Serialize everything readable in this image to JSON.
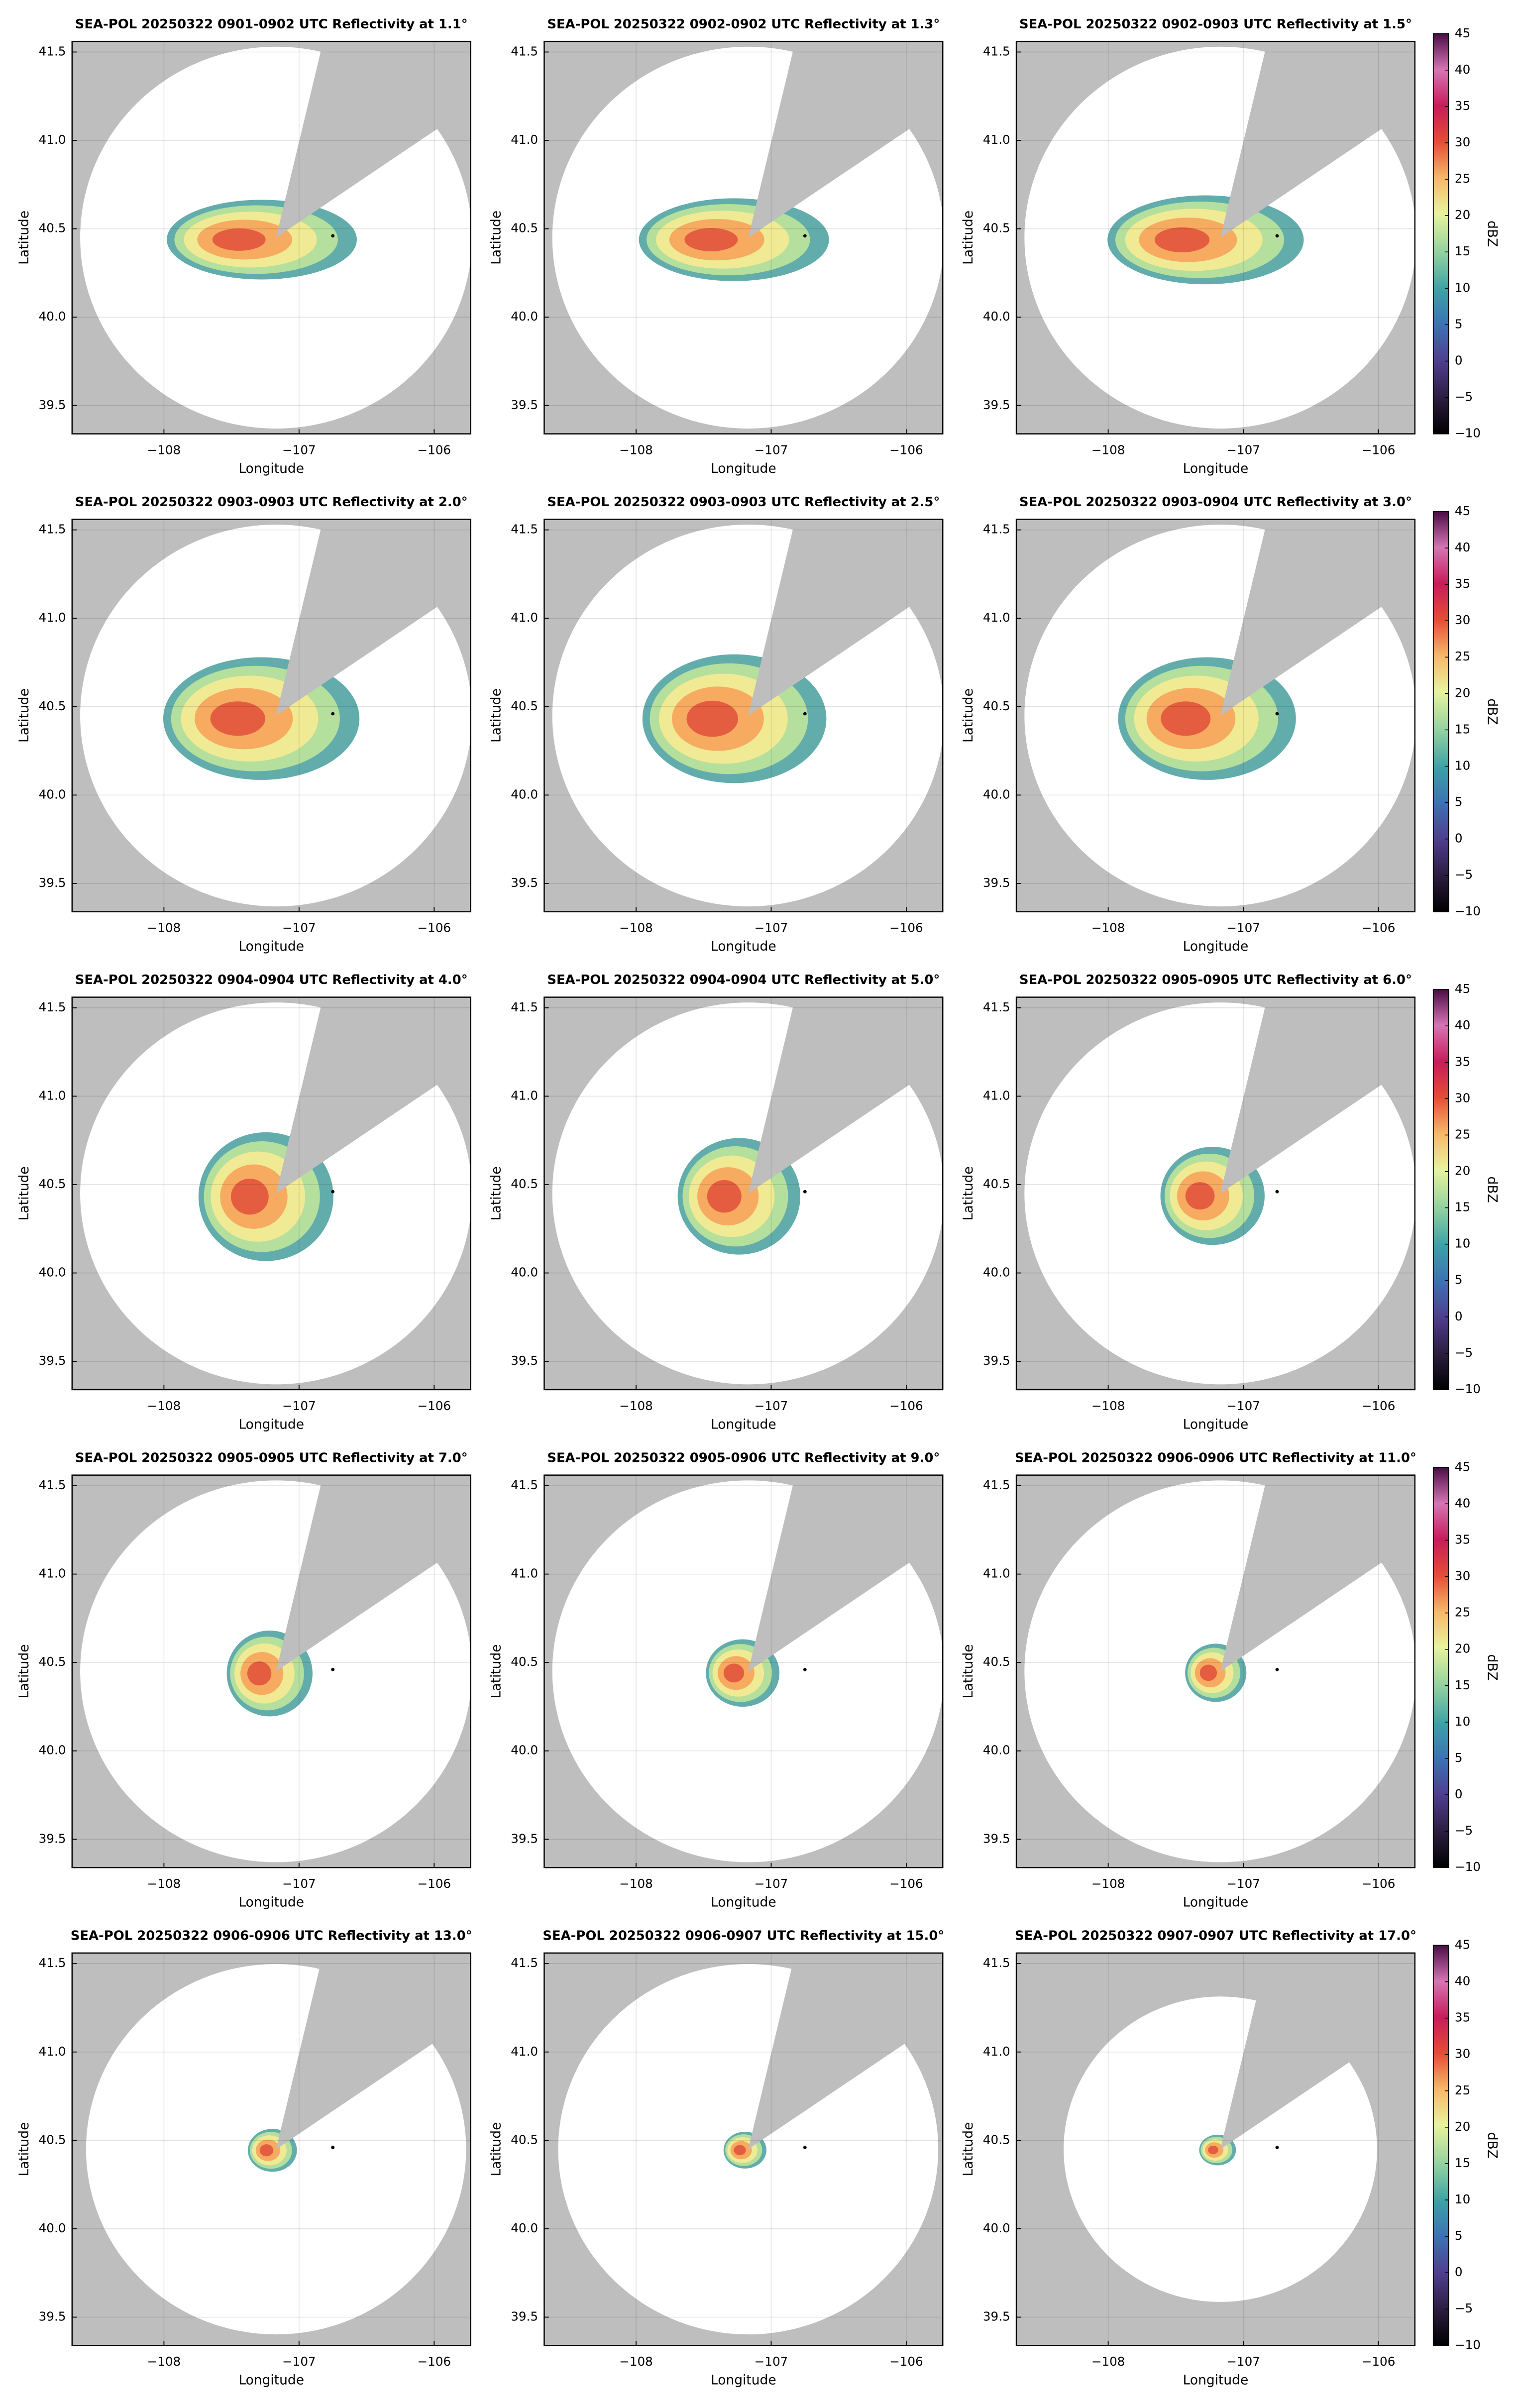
{
  "chart_data": [
    {
      "type": "radar",
      "title": "SEA-POL 20250322 0901-0902 UTC Reflectivity at 1.1°",
      "xlabel": "Longitude",
      "ylabel": "Latitude",
      "xlim": [
        -108.68,
        -105.73
      ],
      "ylim": [
        39.34,
        41.56
      ],
      "xticks": [
        {
          "value": -108,
          "label": "−108"
        },
        {
          "value": -107,
          "label": "−107"
        },
        {
          "value": -106,
          "label": "−106"
        }
      ],
      "yticks": [
        39.5,
        {
          "value": 40.0,
          "label": "40.0"
        },
        40.5,
        {
          "value": 41.0,
          "label": "41.0"
        },
        41.5
      ],
      "grid": true,
      "points": {
        "x": [
          -106.75
        ],
        "y": [
          40.46
        ]
      }
    },
    {
      "type": "radar",
      "title": "SEA-POL 20250322 0902-0902 UTC Reflectivity at 1.3°",
      "xlabel": "Longitude",
      "ylabel": "Latitude",
      "xlim": [
        -108.68,
        -105.73
      ],
      "ylim": [
        39.34,
        41.56
      ],
      "xticks": [
        {
          "value": -108,
          "label": "−108"
        },
        {
          "value": -107,
          "label": "−107"
        },
        {
          "value": -106,
          "label": "−106"
        }
      ],
      "yticks": [
        39.5,
        {
          "value": 40.0,
          "label": "40.0"
        },
        40.5,
        {
          "value": 41.0,
          "label": "41.0"
        },
        41.5
      ],
      "grid": true,
      "points": {
        "x": [
          -106.75
        ],
        "y": [
          40.46
        ]
      }
    },
    {
      "type": "radar",
      "title": "SEA-POL 20250322 0902-0903 UTC Reflectivity at 1.5°",
      "xlabel": "Longitude",
      "ylabel": "Latitude",
      "xlim": [
        -108.68,
        -105.73
      ],
      "ylim": [
        39.34,
        41.56
      ],
      "xticks": [
        {
          "value": -108,
          "label": "−108"
        },
        {
          "value": -107,
          "label": "−107"
        },
        {
          "value": -106,
          "label": "−106"
        }
      ],
      "yticks": [
        39.5,
        {
          "value": 40.0,
          "label": "40.0"
        },
        40.5,
        {
          "value": 41.0,
          "label": "41.0"
        },
        41.5
      ],
      "grid": true,
      "points": {
        "x": [
          -106.75
        ],
        "y": [
          40.46
        ]
      },
      "colorbar": {
        "label": "dBZ",
        "lim": [
          -10,
          45
        ],
        "ticks": [
          {
            "value": -10,
            "label": "−10"
          },
          {
            "value": -5,
            "label": "−5"
          },
          0,
          5,
          10,
          15,
          20,
          25,
          30,
          35,
          40,
          45
        ]
      }
    },
    {
      "type": "radar",
      "title": "SEA-POL 20250322 0903-0903 UTC Reflectivity at 2.0°",
      "xlabel": "Longitude",
      "ylabel": "Latitude",
      "xlim": [
        -108.68,
        -105.73
      ],
      "ylim": [
        39.34,
        41.56
      ],
      "xticks": [
        {
          "value": -108,
          "label": "−108"
        },
        {
          "value": -107,
          "label": "−107"
        },
        {
          "value": -106,
          "label": "−106"
        }
      ],
      "yticks": [
        39.5,
        {
          "value": 40.0,
          "label": "40.0"
        },
        40.5,
        {
          "value": 41.0,
          "label": "41.0"
        },
        41.5
      ],
      "grid": true,
      "points": {
        "x": [
          -106.75
        ],
        "y": [
          40.46
        ]
      }
    },
    {
      "type": "radar",
      "title": "SEA-POL 20250322 0903-0903 UTC Reflectivity at 2.5°",
      "xlabel": "Longitude",
      "ylabel": "Latitude",
      "xlim": [
        -108.68,
        -105.73
      ],
      "ylim": [
        39.34,
        41.56
      ],
      "xticks": [
        {
          "value": -108,
          "label": "−108"
        },
        {
          "value": -107,
          "label": "−107"
        },
        {
          "value": -106,
          "label": "−106"
        }
      ],
      "yticks": [
        39.5,
        {
          "value": 40.0,
          "label": "40.0"
        },
        40.5,
        {
          "value": 41.0,
          "label": "41.0"
        },
        41.5
      ],
      "grid": true,
      "points": {
        "x": [
          -106.75
        ],
        "y": [
          40.46
        ]
      }
    },
    {
      "type": "radar",
      "title": "SEA-POL 20250322 0903-0904 UTC Reflectivity at 3.0°",
      "xlabel": "Longitude",
      "ylabel": "Latitude",
      "xlim": [
        -108.68,
        -105.73
      ],
      "ylim": [
        39.34,
        41.56
      ],
      "xticks": [
        {
          "value": -108,
          "label": "−108"
        },
        {
          "value": -107,
          "label": "−107"
        },
        {
          "value": -106,
          "label": "−106"
        }
      ],
      "yticks": [
        39.5,
        {
          "value": 40.0,
          "label": "40.0"
        },
        40.5,
        {
          "value": 41.0,
          "label": "41.0"
        },
        41.5
      ],
      "grid": true,
      "points": {
        "x": [
          -106.75
        ],
        "y": [
          40.46
        ]
      },
      "colorbar": {
        "label": "dBZ",
        "lim": [
          -10,
          45
        ],
        "ticks": [
          {
            "value": -10,
            "label": "−10"
          },
          {
            "value": -5,
            "label": "−5"
          },
          0,
          5,
          10,
          15,
          20,
          25,
          30,
          35,
          40,
          45
        ]
      }
    },
    {
      "type": "radar",
      "title": "SEA-POL 20250322 0904-0904 UTC Reflectivity at 4.0°",
      "xlabel": "Longitude",
      "ylabel": "Latitude",
      "xlim": [
        -108.68,
        -105.73
      ],
      "ylim": [
        39.34,
        41.56
      ],
      "xticks": [
        {
          "value": -108,
          "label": "−108"
        },
        {
          "value": -107,
          "label": "−107"
        },
        {
          "value": -106,
          "label": "−106"
        }
      ],
      "yticks": [
        39.5,
        {
          "value": 40.0,
          "label": "40.0"
        },
        40.5,
        {
          "value": 41.0,
          "label": "41.0"
        },
        41.5
      ],
      "grid": true,
      "points": {
        "x": [
          -106.75
        ],
        "y": [
          40.46
        ]
      }
    },
    {
      "type": "radar",
      "title": "SEA-POL 20250322 0904-0904 UTC Reflectivity at 5.0°",
      "xlabel": "Longitude",
      "ylabel": "Latitude",
      "xlim": [
        -108.68,
        -105.73
      ],
      "ylim": [
        39.34,
        41.56
      ],
      "xticks": [
        {
          "value": -108,
          "label": "−108"
        },
        {
          "value": -107,
          "label": "−107"
        },
        {
          "value": -106,
          "label": "−106"
        }
      ],
      "yticks": [
        39.5,
        {
          "value": 40.0,
          "label": "40.0"
        },
        40.5,
        {
          "value": 41.0,
          "label": "41.0"
        },
        41.5
      ],
      "grid": true,
      "points": {
        "x": [
          -106.75
        ],
        "y": [
          40.46
        ]
      }
    },
    {
      "type": "radar",
      "title": "SEA-POL 20250322 0905-0905 UTC Reflectivity at 6.0°",
      "xlabel": "Longitude",
      "ylabel": "Latitude",
      "xlim": [
        -108.68,
        -105.73
      ],
      "ylim": [
        39.34,
        41.56
      ],
      "xticks": [
        {
          "value": -108,
          "label": "−108"
        },
        {
          "value": -107,
          "label": "−107"
        },
        {
          "value": -106,
          "label": "−106"
        }
      ],
      "yticks": [
        39.5,
        {
          "value": 40.0,
          "label": "40.0"
        },
        40.5,
        {
          "value": 41.0,
          "label": "41.0"
        },
        41.5
      ],
      "grid": true,
      "points": {
        "x": [
          -106.75
        ],
        "y": [
          40.46
        ]
      },
      "colorbar": {
        "label": "dBZ",
        "lim": [
          -10,
          45
        ],
        "ticks": [
          {
            "value": -10,
            "label": "−10"
          },
          {
            "value": -5,
            "label": "−5"
          },
          0,
          5,
          10,
          15,
          20,
          25,
          30,
          35,
          40,
          45
        ]
      }
    },
    {
      "type": "radar",
      "title": "SEA-POL 20250322 0905-0905 UTC Reflectivity at 7.0°",
      "xlabel": "Longitude",
      "ylabel": "Latitude",
      "xlim": [
        -108.68,
        -105.73
      ],
      "ylim": [
        39.34,
        41.56
      ],
      "xticks": [
        {
          "value": -108,
          "label": "−108"
        },
        {
          "value": -107,
          "label": "−107"
        },
        {
          "value": -106,
          "label": "−106"
        }
      ],
      "yticks": [
        39.5,
        {
          "value": 40.0,
          "label": "40.0"
        },
        40.5,
        {
          "value": 41.0,
          "label": "41.0"
        },
        41.5
      ],
      "grid": true,
      "points": {
        "x": [
          -106.75
        ],
        "y": [
          40.46
        ]
      }
    },
    {
      "type": "radar",
      "title": "SEA-POL 20250322 0905-0906 UTC Reflectivity at 9.0°",
      "xlabel": "Longitude",
      "ylabel": "Latitude",
      "xlim": [
        -108.68,
        -105.73
      ],
      "ylim": [
        39.34,
        41.56
      ],
      "xticks": [
        {
          "value": -108,
          "label": "−108"
        },
        {
          "value": -107,
          "label": "−107"
        },
        {
          "value": -106,
          "label": "−106"
        }
      ],
      "yticks": [
        39.5,
        {
          "value": 40.0,
          "label": "40.0"
        },
        40.5,
        {
          "value": 41.0,
          "label": "41.0"
        },
        41.5
      ],
      "grid": true,
      "points": {
        "x": [
          -106.75
        ],
        "y": [
          40.46
        ]
      }
    },
    {
      "type": "radar",
      "title": "SEA-POL 20250322 0906-0906 UTC Reflectivity at 11.0°",
      "xlabel": "Longitude",
      "ylabel": "Latitude",
      "xlim": [
        -108.68,
        -105.73
      ],
      "ylim": [
        39.34,
        41.56
      ],
      "xticks": [
        {
          "value": -108,
          "label": "−108"
        },
        {
          "value": -107,
          "label": "−107"
        },
        {
          "value": -106,
          "label": "−106"
        }
      ],
      "yticks": [
        39.5,
        {
          "value": 40.0,
          "label": "40.0"
        },
        40.5,
        {
          "value": 41.0,
          "label": "41.0"
        },
        41.5
      ],
      "grid": true,
      "points": {
        "x": [
          -106.75
        ],
        "y": [
          40.46
        ]
      },
      "colorbar": {
        "label": "dBZ",
        "lim": [
          -10,
          45
        ],
        "ticks": [
          {
            "value": -10,
            "label": "−10"
          },
          {
            "value": -5,
            "label": "−5"
          },
          0,
          5,
          10,
          15,
          20,
          25,
          30,
          35,
          40,
          45
        ]
      }
    },
    {
      "type": "radar",
      "title": "SEA-POL 20250322 0906-0906 UTC Reflectivity at 13.0°",
      "xlabel": "Longitude",
      "ylabel": "Latitude",
      "xlim": [
        -108.68,
        -105.73
      ],
      "ylim": [
        39.34,
        41.56
      ],
      "xticks": [
        {
          "value": -108,
          "label": "−108"
        },
        {
          "value": -107,
          "label": "−107"
        },
        {
          "value": -106,
          "label": "−106"
        }
      ],
      "yticks": [
        39.5,
        {
          "value": 40.0,
          "label": "40.0"
        },
        40.5,
        {
          "value": 41.0,
          "label": "41.0"
        },
        41.5
      ],
      "grid": true,
      "points": {
        "x": [
          -106.75
        ],
        "y": [
          40.46
        ]
      }
    },
    {
      "type": "radar",
      "title": "SEA-POL 20250322 0906-0907 UTC Reflectivity at 15.0°",
      "xlabel": "Longitude",
      "ylabel": "Latitude",
      "xlim": [
        -108.68,
        -105.73
      ],
      "ylim": [
        39.34,
        41.56
      ],
      "xticks": [
        {
          "value": -108,
          "label": "−108"
        },
        {
          "value": -107,
          "label": "−107"
        },
        {
          "value": -106,
          "label": "−106"
        }
      ],
      "yticks": [
        39.5,
        {
          "value": 40.0,
          "label": "40.0"
        },
        40.5,
        {
          "value": 41.0,
          "label": "41.0"
        },
        41.5
      ],
      "grid": true,
      "points": {
        "x": [
          -106.75
        ],
        "y": [
          40.46
        ]
      }
    },
    {
      "type": "radar",
      "title": "SEA-POL 20250322 0907-0907 UTC Reflectivity at 17.0°",
      "xlabel": "Longitude",
      "ylabel": "Latitude",
      "xlim": [
        -108.68,
        -105.73
      ],
      "ylim": [
        39.34,
        41.56
      ],
      "xticks": [
        {
          "value": -108,
          "label": "−108"
        },
        {
          "value": -107,
          "label": "−107"
        },
        {
          "value": -106,
          "label": "−106"
        }
      ],
      "yticks": [
        39.5,
        {
          "value": 40.0,
          "label": "40.0"
        },
        40.5,
        {
          "value": 41.0,
          "label": "41.0"
        },
        41.5
      ],
      "grid": true,
      "points": {
        "x": [
          -106.75
        ],
        "y": [
          40.46
        ]
      },
      "colorbar": {
        "label": "dBZ",
        "lim": [
          -10,
          45
        ],
        "ticks": [
          {
            "value": -10,
            "label": "−10"
          },
          {
            "value": -5,
            "label": "−5"
          },
          0,
          5,
          10,
          15,
          20,
          25,
          30,
          35,
          40,
          45
        ]
      }
    }
  ]
}
